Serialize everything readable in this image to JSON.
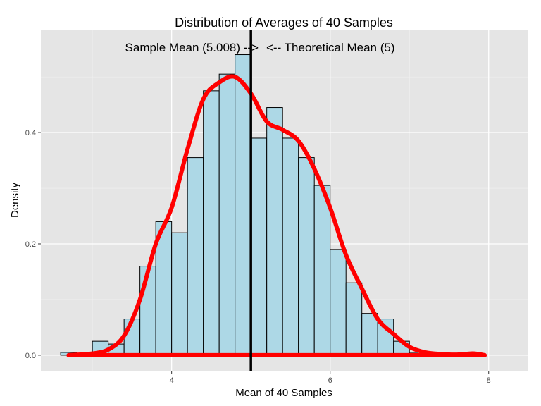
{
  "chart_data": {
    "type": "histogram",
    "title": "Distribution of Averages of 40 Samples",
    "xlabel": "Mean of 40 Samples",
    "ylabel": "Density",
    "xlim": [
      2.35,
      8.5
    ],
    "ylim": [
      -0.028,
      0.585
    ],
    "x_ticks": [
      4,
      6,
      8
    ],
    "y_ticks": [
      0.0,
      0.2,
      0.4
    ],
    "x_tick_labels": [
      "4",
      "6",
      "8"
    ],
    "y_tick_labels": [
      "0.0",
      "0.2",
      "0.4"
    ],
    "grid": true,
    "bin_width": 0.2,
    "bins": [
      {
        "x": 2.5,
        "density": 0.0
      },
      {
        "x": 2.7,
        "density": 0.005
      },
      {
        "x": 2.9,
        "density": 0.0
      },
      {
        "x": 3.1,
        "density": 0.025
      },
      {
        "x": 3.3,
        "density": 0.02
      },
      {
        "x": 3.5,
        "density": 0.065
      },
      {
        "x": 3.7,
        "density": 0.16
      },
      {
        "x": 3.9,
        "density": 0.24
      },
      {
        "x": 4.1,
        "density": 0.22
      },
      {
        "x": 4.3,
        "density": 0.355
      },
      {
        "x": 4.5,
        "density": 0.475
      },
      {
        "x": 4.7,
        "density": 0.505
      },
      {
        "x": 4.9,
        "density": 0.54
      },
      {
        "x": 5.1,
        "density": 0.39
      },
      {
        "x": 5.3,
        "density": 0.445
      },
      {
        "x": 5.5,
        "density": 0.39
      },
      {
        "x": 5.7,
        "density": 0.355
      },
      {
        "x": 5.9,
        "density": 0.305
      },
      {
        "x": 6.1,
        "density": 0.19
      },
      {
        "x": 6.3,
        "density": 0.13
      },
      {
        "x": 6.5,
        "density": 0.075
      },
      {
        "x": 6.7,
        "density": 0.065
      },
      {
        "x": 6.9,
        "density": 0.025
      },
      {
        "x": 7.1,
        "density": 0.005
      },
      {
        "x": 7.3,
        "density": 0.0
      },
      {
        "x": 7.5,
        "density": 0.0
      },
      {
        "x": 7.7,
        "density": 0.0
      },
      {
        "x": 7.9,
        "density": 0.0
      },
      {
        "x": 8.1,
        "density": 0.0
      }
    ],
    "density_curve": {
      "x": [
        2.7,
        3.0,
        3.2,
        3.4,
        3.6,
        3.8,
        4.0,
        4.2,
        4.4,
        4.6,
        4.8,
        5.0,
        5.2,
        5.4,
        5.6,
        5.8,
        6.0,
        6.2,
        6.4,
        6.6,
        6.8,
        7.0,
        7.2,
        7.4,
        7.6,
        7.8,
        7.95
      ],
      "y": [
        0.0,
        0.003,
        0.01,
        0.035,
        0.1,
        0.2,
        0.265,
        0.37,
        0.46,
        0.49,
        0.5,
        0.47,
        0.42,
        0.405,
        0.385,
        0.335,
        0.265,
        0.18,
        0.12,
        0.065,
        0.038,
        0.015,
        0.005,
        0.002,
        0.001,
        0.003,
        0.0
      ],
      "color": "#ff0000"
    },
    "sample_mean": 5.008,
    "theoretical_mean": 5,
    "annotations": {
      "sample_mean_label": "Sample Mean (5.008) -->",
      "theoretical_mean_label": "<-- Theoretical Mean (5)"
    },
    "colors": {
      "bar_fill": "#add8e6",
      "bar_stroke": "#000000",
      "panel": "#e5e5e5",
      "grid": "#ffffff",
      "mean_line": "#000000",
      "curve": "#ff0000"
    }
  }
}
